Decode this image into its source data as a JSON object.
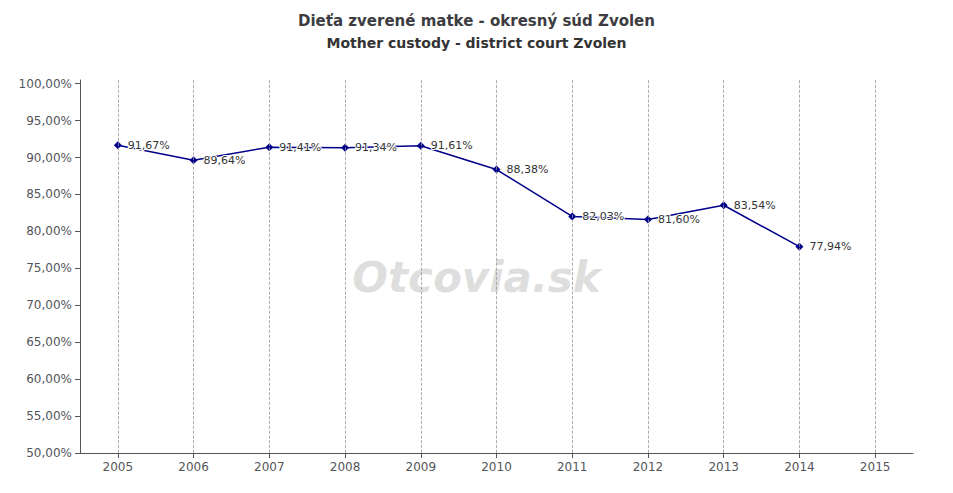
{
  "chart_data": {
    "type": "line",
    "title": "Dieťa zverené matke - okresný súd Zvolen",
    "subtitle": "Mother custody - district court Zvolen",
    "x": [
      2005,
      2006,
      2007,
      2008,
      2009,
      2010,
      2011,
      2012,
      2013,
      2014
    ],
    "values": [
      0.9167,
      0.8964,
      0.9141,
      0.9134,
      0.9161,
      0.8838,
      0.8203,
      0.816,
      0.8354,
      0.7794
    ],
    "value_labels": [
      "91,67%",
      "89,64%",
      "91,41%",
      "91,34%",
      "91,61%",
      "88,38%",
      "82,03%",
      "81,60%",
      "83,54%",
      "77,94%"
    ],
    "data_labels": true,
    "color": "#00008B",
    "marker": "diamond",
    "xlim": [
      2004.5,
      2015.5
    ],
    "xticks": [
      2005,
      2006,
      2007,
      2008,
      2009,
      2010,
      2011,
      2012,
      2013,
      2014,
      2015
    ],
    "ylim": [
      0.5,
      1.005
    ],
    "yticks": [
      {
        "value": 0.5,
        "label": "50,00%"
      },
      {
        "value": 0.55,
        "label": "55,00%"
      },
      {
        "value": 0.6,
        "label": "60,00%"
      },
      {
        "value": 0.65,
        "label": "65,00%"
      },
      {
        "value": 0.7,
        "label": "70,00%"
      },
      {
        "value": 0.75,
        "label": "75,00%"
      },
      {
        "value": 0.8,
        "label": "80,00%"
      },
      {
        "value": 0.85,
        "label": "85,00%"
      },
      {
        "value": 0.9,
        "label": "90,00%"
      },
      {
        "value": 0.95,
        "label": "95,00%"
      },
      {
        "value": 1.0,
        "label": "100,00%"
      }
    ],
    "grid": "x",
    "annotations": [
      "Otcovia.sk"
    ]
  }
}
